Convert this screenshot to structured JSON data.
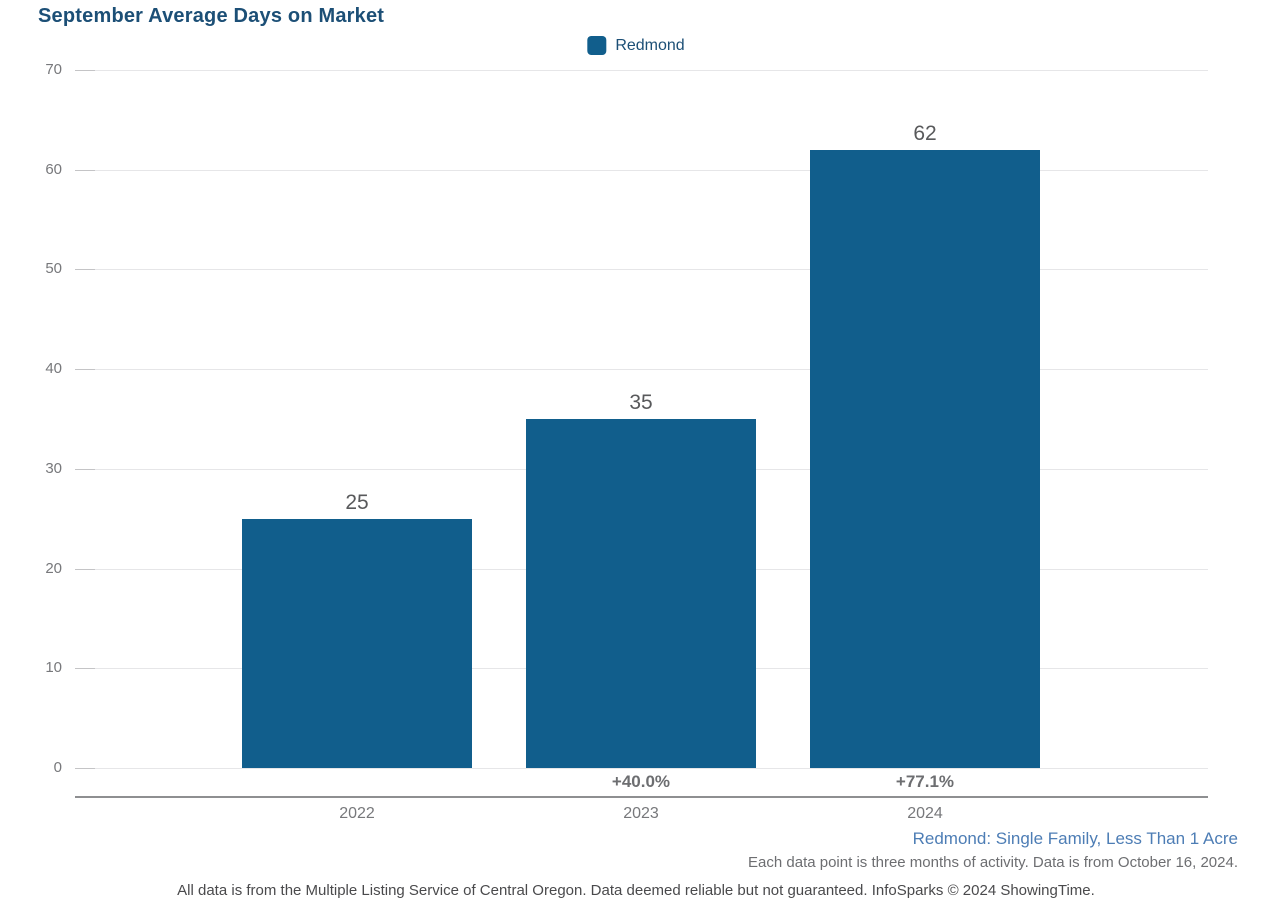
{
  "title": "September Average Days on Market",
  "legend": {
    "label": "Redmond",
    "color": "#115E8C"
  },
  "chart_data": {
    "type": "bar",
    "title": "September Average Days on Market",
    "categories": [
      "2022",
      "2023",
      "2024"
    ],
    "values": [
      25,
      35,
      62
    ],
    "value_labels": [
      "25",
      "35",
      "62"
    ],
    "pct_change_labels": [
      "",
      "+40.0%",
      "+77.1%"
    ],
    "xlabel": "",
    "ylabel": "",
    "ylim": [
      0,
      70
    ],
    "yticks": [
      0,
      10,
      20,
      30,
      40,
      50,
      60,
      70
    ],
    "grid": true,
    "legend": [
      "Redmond"
    ],
    "legend_position": "top-center",
    "bar_color": "#115E8C"
  },
  "footer": {
    "series_note": "Redmond: Single Family, Less Than 1 Acre",
    "data_note": "Each data point is three months of activity. Data is from October 16, 2024.",
    "disclaimer": "All data is from the Multiple Listing Service of Central Oregon. Data deemed reliable but not guaranteed. InfoSparks © 2024 ShowingTime."
  },
  "colors": {
    "bar": "#115E8C",
    "title_text": "#1C4F76",
    "series_note_text": "#4D7DB5",
    "gridline": "#E6E6E8",
    "axis_line": "#8E8F91",
    "tick_text": "#77787B"
  }
}
